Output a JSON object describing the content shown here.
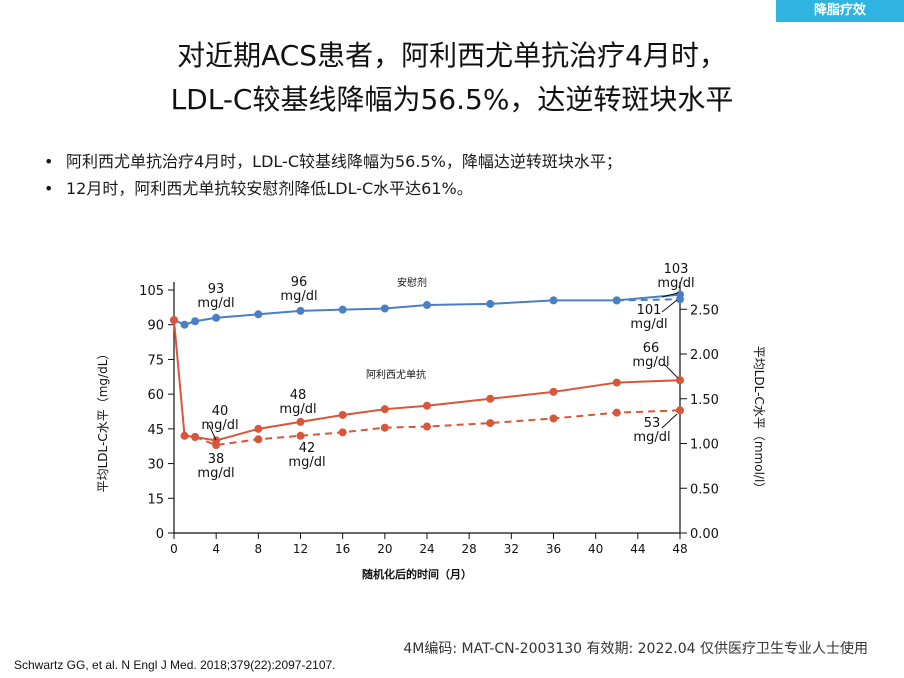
{
  "header": {
    "tag": "降脂疗效",
    "title_line1": "对近期ACS患者，阿利西尤单抗治疗4月时，",
    "title_line2": "LDL-C较基线降幅为56.5%，达逆转斑块水平"
  },
  "bullets": [
    "阿利西尤单抗治疗4月时，LDL-C较基线降幅为56.5%，降幅达逆转斑块水平；",
    "12月时，阿利西尤单抗较安慰剂降低LDL-C水平达61%。"
  ],
  "chart_data": {
    "type": "line",
    "xlabel": "随机化后的时间（月）",
    "ylabel_left": "平均LDL-C水平（mg/dL）",
    "ylabel_right": "平均LDL-C水平（mmol/l）",
    "x_ticks": [
      0,
      4,
      8,
      12,
      16,
      20,
      24,
      28,
      32,
      36,
      40,
      44,
      48
    ],
    "y_ticks_left": [
      0,
      15,
      30,
      45,
      60,
      75,
      90,
      105
    ],
    "y_ticks_right": [
      "0.00",
      "0.50",
      "1.00",
      "1.50",
      "2.00",
      "2.50"
    ],
    "xlim": [
      0,
      48
    ],
    "ylim_left": [
      0,
      105
    ],
    "series": [
      {
        "name": "安慰剂",
        "color": "#4a7fc8",
        "dashed": false,
        "points": [
          [
            0,
            92
          ],
          [
            1,
            90
          ],
          [
            2,
            91.5
          ],
          [
            4,
            93
          ],
          [
            8,
            94.5
          ],
          [
            12,
            96
          ],
          [
            16,
            96.5
          ],
          [
            20,
            97
          ],
          [
            24,
            98.5
          ],
          [
            30,
            99
          ],
          [
            36,
            100.5
          ],
          [
            42,
            100.5
          ],
          [
            48,
            103
          ]
        ]
      },
      {
        "name": "",
        "color": "#4a7fc8",
        "dashed": true,
        "points": [
          [
            42,
            100.5
          ],
          [
            48,
            101
          ]
        ]
      },
      {
        "name": "阿利西尤单抗",
        "color": "#d9563a",
        "dashed": false,
        "points": [
          [
            0,
            92
          ],
          [
            1,
            42
          ],
          [
            2,
            41.5
          ],
          [
            4,
            40
          ],
          [
            8,
            45
          ],
          [
            12,
            48
          ],
          [
            16,
            51
          ],
          [
            20,
            53.5
          ],
          [
            24,
            55
          ],
          [
            30,
            58
          ],
          [
            36,
            61
          ],
          [
            42,
            65
          ],
          [
            48,
            66
          ]
        ]
      },
      {
        "name": "",
        "color": "#d9563a",
        "dashed": true,
        "points": [
          [
            2,
            41.5
          ],
          [
            4,
            38
          ],
          [
            8,
            40.5
          ],
          [
            12,
            42
          ],
          [
            16,
            43.5
          ],
          [
            20,
            45.5
          ],
          [
            24,
            46
          ],
          [
            30,
            47.5
          ],
          [
            36,
            49.5
          ],
          [
            42,
            52
          ],
          [
            48,
            53
          ]
        ]
      }
    ],
    "series_labels": {
      "placebo": "安慰剂",
      "alirocumab": "阿利西尤单抗"
    },
    "annotations": [
      {
        "text": [
          "93",
          "mg/dl"
        ]
      },
      {
        "text": [
          "96",
          "mg/dl"
        ]
      },
      {
        "text": [
          "103",
          "mg/dl"
        ]
      },
      {
        "text": [
          "101",
          "mg/dl"
        ]
      },
      {
        "text": [
          "40",
          "mg/dl"
        ]
      },
      {
        "text": [
          "48",
          "mg/dl"
        ]
      },
      {
        "text": [
          "66",
          "mg/dl"
        ]
      },
      {
        "text": [
          "38",
          "mg/dl"
        ]
      },
      {
        "text": [
          "42",
          "mg/dl"
        ]
      },
      {
        "text": [
          "53",
          "mg/dl"
        ]
      }
    ]
  },
  "footer": {
    "code": "4M编码:   MAT-CN-2003130   有效期:  2022.04   仅供医疗卫生专业人士使用",
    "citation": "Schwartz GG, et al. N Engl J Med. 2018;379(22):2097-2107."
  }
}
